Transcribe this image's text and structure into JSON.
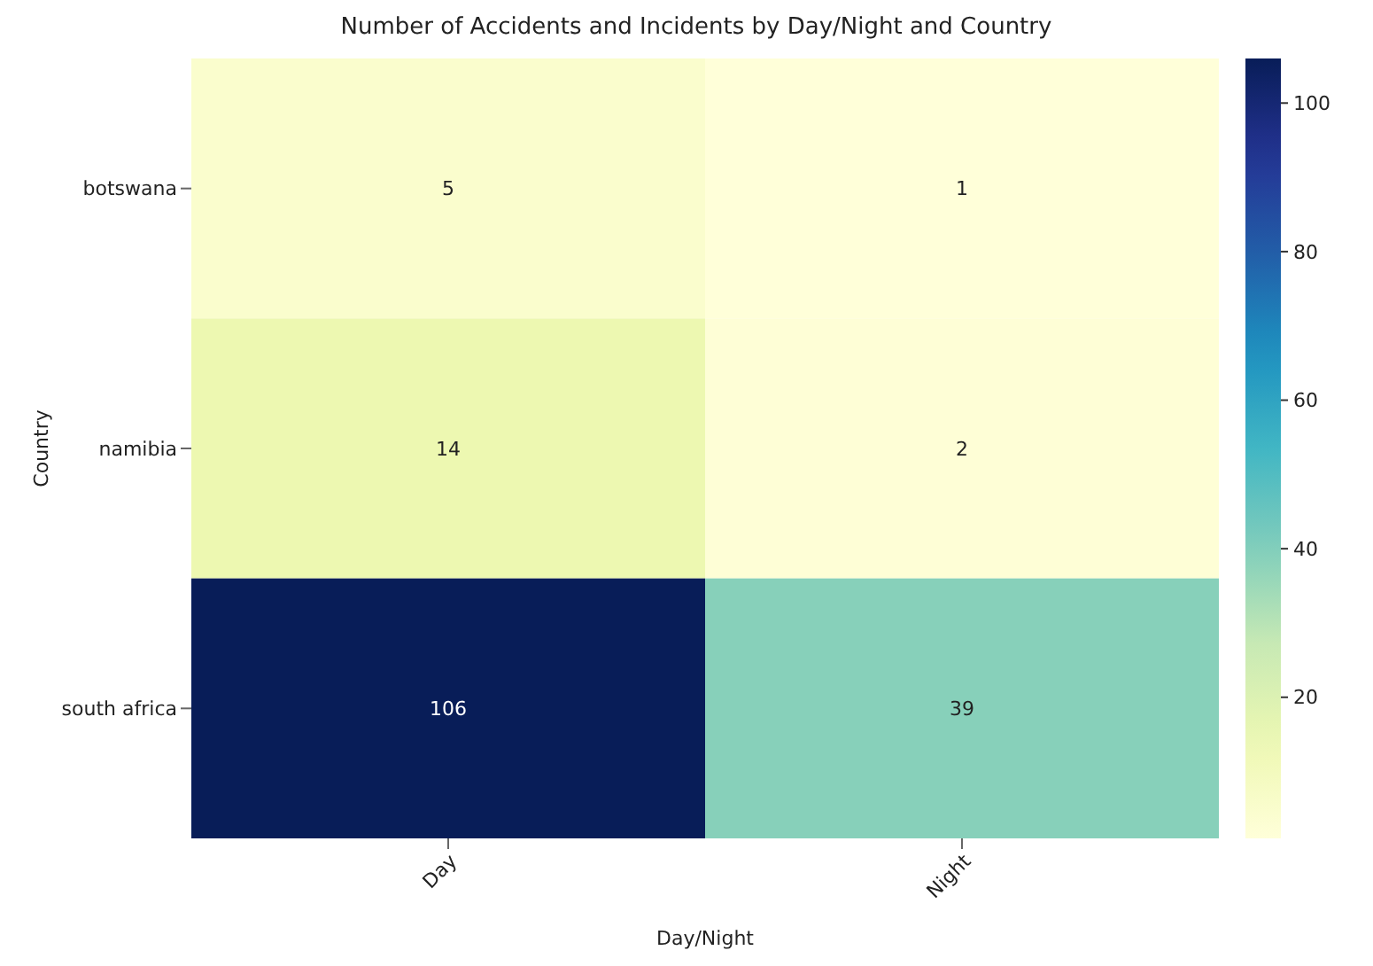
{
  "chart_data": {
    "type": "heatmap",
    "title": "Number of Accidents and Incidents by Day/Night and Country",
    "xlabel": "Day/Night",
    "ylabel": "Country",
    "categories": [
      "Day",
      "Night"
    ],
    "y_categories": [
      "botswana",
      "namibia",
      "south africa"
    ],
    "cells": [
      [
        5,
        1
      ],
      [
        14,
        2
      ],
      [
        106,
        39
      ]
    ],
    "data_labels": true,
    "clim": [
      1,
      106
    ],
    "cticks": [
      20,
      40,
      60,
      80,
      100
    ]
  }
}
